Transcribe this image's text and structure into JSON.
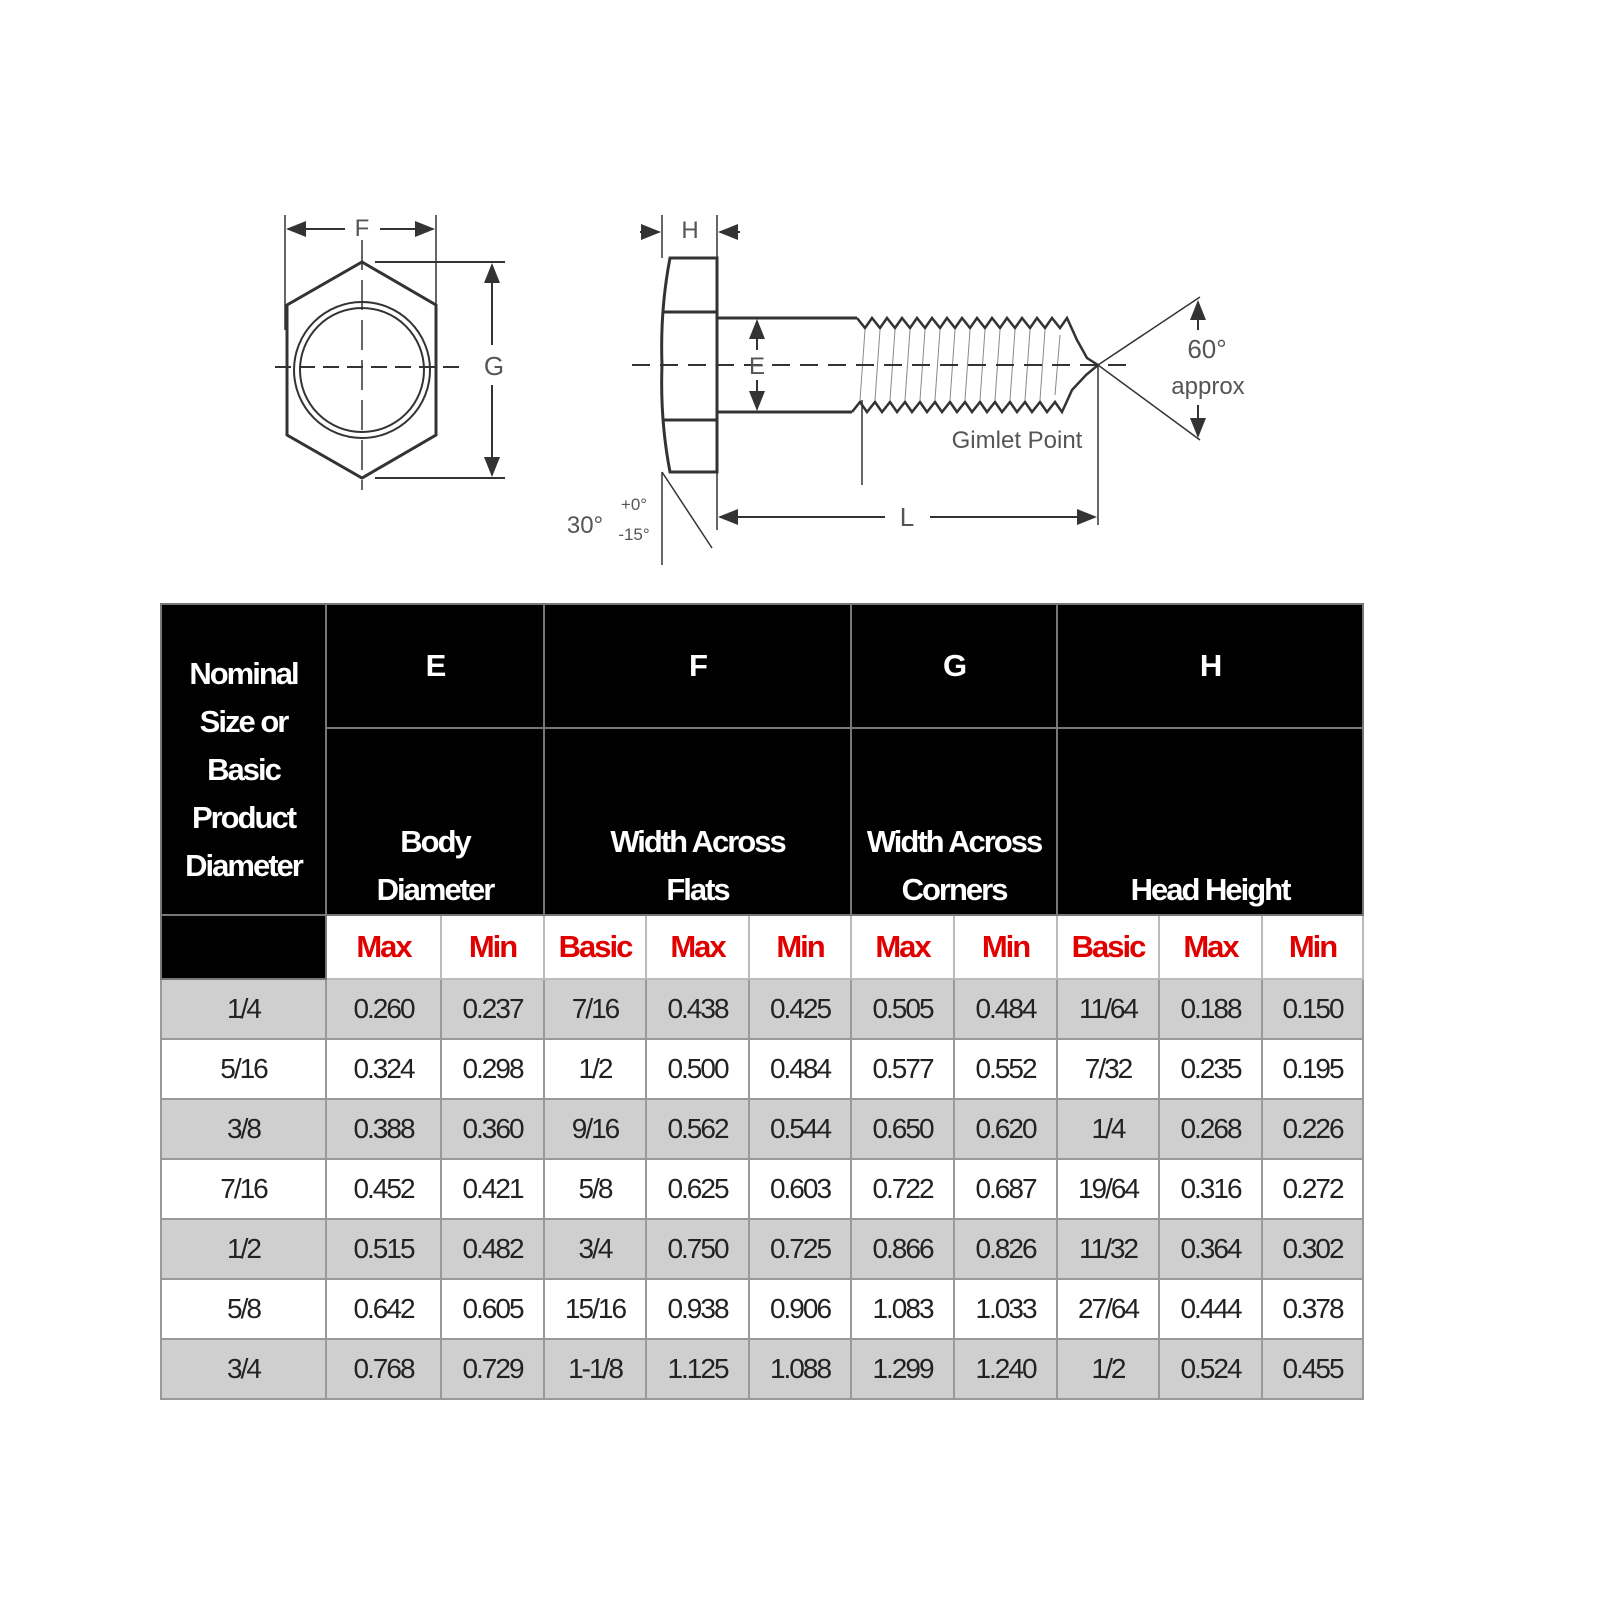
{
  "diagram": {
    "labels": {
      "F": "F",
      "G": "G",
      "H": "H",
      "E": "E",
      "L": "L",
      "angle": "60°",
      "approx": "approx",
      "gimlet": "Gimlet Point",
      "chamfer": "30°",
      "tol_plus": "+0°",
      "tol_minus": "-15°"
    }
  },
  "table": {
    "size_header": [
      "Nominal",
      "Size or",
      "Basic",
      "Product",
      "Diameter"
    ],
    "groups": [
      {
        "letter": "E",
        "name": [
          "Body",
          "Diameter"
        ]
      },
      {
        "letter": "F",
        "name": [
          "Width Across",
          "Flats"
        ]
      },
      {
        "letter": "G",
        "name": [
          "Width Across",
          "Corners"
        ]
      },
      {
        "letter": "H",
        "name": [
          "Head Height"
        ]
      }
    ],
    "subheaders": [
      "Max",
      "Min",
      "Basic",
      "Max",
      "Min",
      "Max",
      "Min",
      "Basic",
      "Max",
      "Min"
    ],
    "rows": [
      [
        "1/4",
        "0.260",
        "0.237",
        "7/16",
        "0.438",
        "0.425",
        "0.505",
        "0.484",
        "11/64",
        "0.188",
        "0.150"
      ],
      [
        "5/16",
        "0.324",
        "0.298",
        "1/2",
        "0.500",
        "0.484",
        "0.577",
        "0.552",
        "7/32",
        "0.235",
        "0.195"
      ],
      [
        "3/8",
        "0.388",
        "0.360",
        "9/16",
        "0.562",
        "0.544",
        "0.650",
        "0.620",
        "1/4",
        "0.268",
        "0.226"
      ],
      [
        "7/16",
        "0.452",
        "0.421",
        "5/8",
        "0.625",
        "0.603",
        "0.722",
        "0.687",
        "19/64",
        "0.316",
        "0.272"
      ],
      [
        "1/2",
        "0.515",
        "0.482",
        "3/4",
        "0.750",
        "0.725",
        "0.866",
        "0.826",
        "11/32",
        "0.364",
        "0.302"
      ],
      [
        "5/8",
        "0.642",
        "0.605",
        "15/16",
        "0.938",
        "0.906",
        "1.083",
        "1.033",
        "27/64",
        "0.444",
        "0.378"
      ],
      [
        "3/4",
        "0.768",
        "0.729",
        "1-1/8",
        "1.125",
        "1.088",
        "1.299",
        "1.240",
        "1/2",
        "0.524",
        "0.455"
      ]
    ]
  },
  "colors": {
    "header_bg": "#000000",
    "subheader_text": "#e00000",
    "row_shade": "#cfcfcf"
  }
}
